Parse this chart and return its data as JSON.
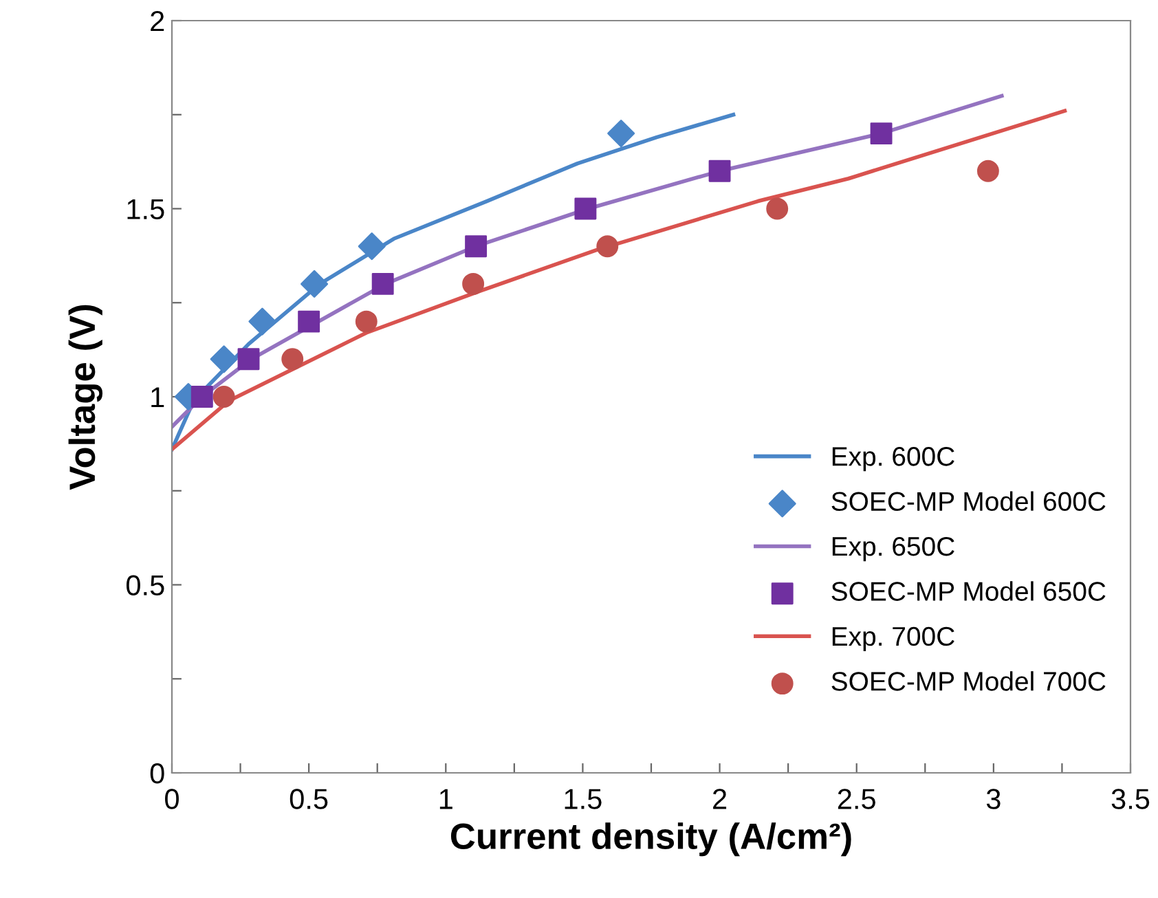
{
  "chart_data": {
    "type": "line",
    "xlabel": "Current density (A/cm²)",
    "ylabel": "Voltage (V)",
    "xlim": [
      0,
      3.5
    ],
    "ylim": [
      0,
      2
    ],
    "xticks": [
      0,
      {
        "value": 0.25,
        "label": null
      },
      0.5,
      {
        "value": 0.75,
        "label": null
      },
      1,
      {
        "value": 1.25,
        "label": null
      },
      1.5,
      {
        "value": 1.75,
        "label": null
      },
      2,
      {
        "value": 2.25,
        "label": null
      },
      2.5,
      {
        "value": 2.75,
        "label": null
      },
      3,
      {
        "value": 3.25,
        "label": null
      },
      3.5
    ],
    "yticks": [
      0,
      {
        "value": 0.25,
        "label": null
      },
      0.5,
      {
        "value": 0.75,
        "label": null
      },
      1,
      {
        "value": 1.25,
        "label": null
      },
      1.5,
      {
        "value": 1.75,
        "label": null
      },
      2
    ],
    "grid": false,
    "legend": "bottom right",
    "series": [
      {
        "name": "Exp. 600C",
        "color": "#4a86c8",
        "marker": "none",
        "x": [
          0,
          0.08,
          0.28,
          0.54,
          0.81,
          1.15,
          1.48,
          1.77,
          2.05
        ],
        "values": [
          0.86,
          0.99,
          1.14,
          1.3,
          1.42,
          1.52,
          1.62,
          1.69,
          1.75
        ]
      },
      {
        "name": "SOEC-MP Model 600C",
        "type": "scatter",
        "color": "#4a86c8",
        "marker": "diamond",
        "x": [
          0.06,
          0.19,
          0.33,
          0.52,
          0.73,
          1.64
        ],
        "values": [
          1.0,
          1.1,
          1.2,
          1.3,
          1.4,
          1.7
        ]
      },
      {
        "name": "Exp. 650C",
        "color": "#9473c0",
        "marker": "none",
        "x": [
          0,
          0.11,
          0.29,
          0.78,
          1.11,
          1.52,
          2.0,
          2.59,
          3.03
        ],
        "values": [
          0.92,
          1.0,
          1.1,
          1.3,
          1.4,
          1.5,
          1.6,
          1.7,
          1.8
        ]
      },
      {
        "name": "SOEC-MP Model 650C",
        "type": "scatter",
        "color": "#7030a0",
        "marker": "square",
        "x": [
          0.11,
          0.28,
          0.5,
          0.77,
          1.11,
          1.51,
          2.0,
          2.59
        ],
        "values": [
          1.0,
          1.1,
          1.2,
          1.3,
          1.4,
          1.5,
          1.6,
          1.7
        ]
      },
      {
        "name": "Exp. 700C",
        "color": "#d9534f",
        "marker": "none",
        "x": [
          0,
          0.21,
          0.71,
          1.12,
          1.55,
          2.14,
          2.47,
          3.26
        ],
        "values": [
          0.86,
          0.99,
          1.17,
          1.28,
          1.39,
          1.52,
          1.58,
          1.76
        ]
      },
      {
        "name": "SOEC-MP Model 700C",
        "type": "scatter",
        "color": "#c0504d",
        "marker": "circle",
        "x": [
          0.19,
          0.44,
          0.71,
          1.1,
          1.59,
          2.21,
          2.98
        ],
        "values": [
          1.0,
          1.1,
          1.2,
          1.3,
          1.4,
          1.5,
          1.6
        ]
      }
    ]
  }
}
